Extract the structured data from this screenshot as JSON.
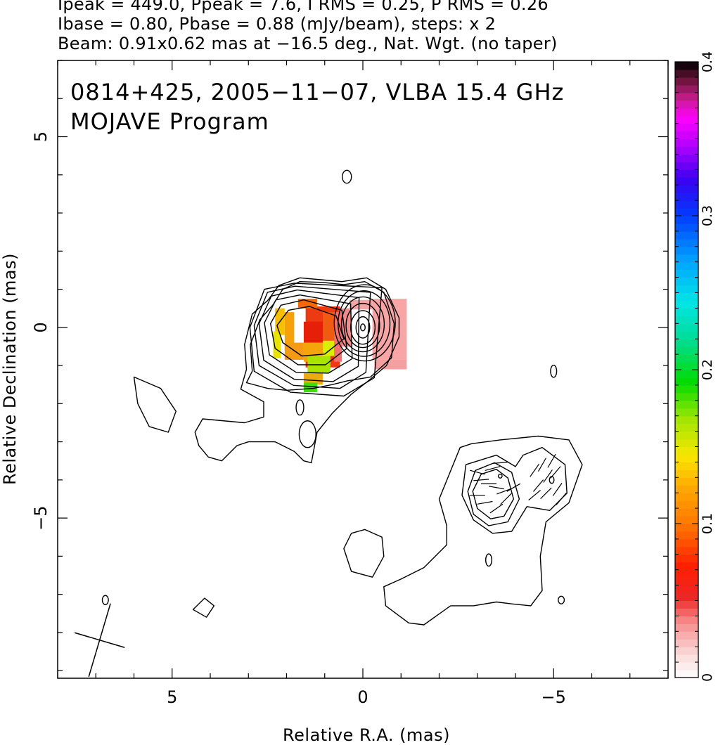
{
  "header": {
    "line1": "Ipeak = 449.0, Ppeak = 7.6, I RMS = 0.25, P RMS = 0.26",
    "line2": "Ibase = 0.80, Pbase = 0.88 (mJy/beam), steps: x 2",
    "line3": "Beam: 0.91x0.62 mas at −16.5 deg., Nat. Wgt. (no taper)"
  },
  "chart_data": {
    "type": "heatmap",
    "title": "0814+425, 2005−11−07, VLBA 15.4 GHz",
    "subtitle": "MOJAVE Program",
    "xlabel": "Relative R.A. (mas)",
    "ylabel": "Relative Declination (mas)",
    "xlim": [
      8.0,
      -8.0
    ],
    "ylim": [
      -9.2,
      7.0
    ],
    "x_ticks": [
      5,
      0,
      -5
    ],
    "x_tick_labels": [
      "5",
      "0",
      "−5"
    ],
    "y_ticks": [
      5,
      0,
      -5
    ],
    "y_tick_labels": [
      "5",
      "0",
      "−5"
    ],
    "colorbar": {
      "range": [
        0,
        0.4
      ],
      "ticks": [
        0,
        0.1,
        0.2,
        0.3,
        0.4
      ],
      "tick_labels": [
        "0",
        "0.1",
        "0.2",
        "0.3",
        "0.4"
      ]
    },
    "peak_intensity_mJy_per_beam": 449.0,
    "peak_polarization_mJy_per_beam": 7.6,
    "I_rms": 0.25,
    "P_rms": 0.26,
    "I_base": 0.8,
    "P_base": 0.88,
    "contour_step": 2,
    "beam": {
      "major_mas": 0.91,
      "minor_mas": 0.62,
      "pa_deg": -16.5
    },
    "core_contours": [
      {
        "x": 0.0,
        "y": 0.0,
        "rx": 0.06,
        "ry": 0.09
      },
      {
        "x": 0.0,
        "y": 0.0,
        "rx": 0.18,
        "ry": 0.28
      },
      {
        "x": 0.0,
        "y": 0.0,
        "rx": 0.32,
        "ry": 0.44
      },
      {
        "x": 0.0,
        "y": 0.05,
        "rx": 0.44,
        "ry": 0.58
      },
      {
        "x": 0.0,
        "y": 0.08,
        "rx": 0.56,
        "ry": 0.72
      },
      {
        "x": -0.03,
        "y": 0.1,
        "rx": 0.68,
        "ry": 0.86
      },
      {
        "x": -0.05,
        "y": 0.12,
        "rx": 0.8,
        "ry": 1.0
      }
    ],
    "nested_contours": [
      [
        [
          1.4,
          0.55
        ],
        [
          1.95,
          0.45
        ],
        [
          2.25,
          0.05
        ],
        [
          2.1,
          -0.4
        ],
        [
          1.6,
          -0.75
        ],
        [
          1.0,
          -0.7
        ],
        [
          0.5,
          -0.3
        ],
        [
          0.7,
          0.3
        ]
      ],
      [
        [
          1.55,
          0.72
        ],
        [
          2.15,
          0.58
        ],
        [
          2.42,
          0.1
        ],
        [
          2.3,
          -0.55
        ],
        [
          1.7,
          -0.98
        ],
        [
          0.98,
          -0.98
        ],
        [
          0.42,
          -0.55
        ],
        [
          0.55,
          0.45
        ]
      ],
      [
        [
          1.65,
          0.85
        ],
        [
          2.28,
          0.72
        ],
        [
          2.58,
          0.12
        ],
        [
          2.45,
          -0.72
        ],
        [
          1.75,
          -1.18
        ],
        [
          0.9,
          -1.2
        ],
        [
          0.28,
          -0.82
        ],
        [
          0.32,
          0.62
        ]
      ],
      [
        [
          1.72,
          0.98
        ],
        [
          2.4,
          0.82
        ],
        [
          2.72,
          0.1
        ],
        [
          2.6,
          -0.86
        ],
        [
          1.8,
          -1.36
        ],
        [
          0.78,
          -1.42
        ],
        [
          0.12,
          -1.02
        ],
        [
          0.1,
          0.78
        ]
      ],
      [
        [
          1.78,
          1.08
        ],
        [
          2.5,
          0.92
        ],
        [
          2.85,
          0.05
        ],
        [
          2.72,
          -1.0
        ],
        [
          1.82,
          -1.52
        ],
        [
          0.6,
          -1.6
        ],
        [
          -0.08,
          -1.18
        ],
        [
          -0.2,
          0.92
        ]
      ],
      [
        [
          1.8,
          1.16
        ],
        [
          2.58,
          1.0
        ],
        [
          2.96,
          0.0
        ],
        [
          2.85,
          -1.15
        ],
        [
          1.9,
          -1.7
        ],
        [
          0.5,
          -1.8
        ],
        [
          -0.3,
          -1.32
        ],
        [
          -0.5,
          1.04
        ]
      ]
    ],
    "outer_contours": [
      [
        [
          2.5,
          0.7
        ],
        [
          2.9,
          0.35
        ],
        [
          3.1,
          -0.45
        ],
        [
          3.05,
          -1.1
        ],
        [
          3.2,
          -1.62
        ],
        [
          2.6,
          -1.95
        ],
        [
          2.6,
          -2.35
        ],
        [
          3.1,
          -2.5
        ],
        [
          4.2,
          -2.4
        ],
        [
          4.4,
          -2.75
        ],
        [
          4.3,
          -3.1
        ],
        [
          4.05,
          -3.4
        ],
        [
          3.7,
          -3.5
        ],
        [
          3.3,
          -3.1
        ],
        [
          3.0,
          -3.0
        ],
        [
          2.3,
          -3.0
        ],
        [
          1.8,
          -3.25
        ],
        [
          1.55,
          -3.5
        ],
        [
          1.35,
          -3.55
        ],
        [
          1.2,
          -2.75
        ],
        [
          0.8,
          -2.25
        ],
        [
          0.55,
          -2.0
        ],
        [
          0.3,
          -1.75
        ],
        [
          -0.12,
          -1.42
        ],
        [
          -0.62,
          -1.0
        ],
        [
          -0.95,
          -0.25
        ],
        [
          -0.95,
          0.25
        ],
        [
          -0.6,
          1.0
        ],
        [
          -0.1,
          1.3
        ],
        [
          0.55,
          1.2
        ],
        [
          1.1,
          1.25
        ],
        [
          1.65,
          1.3
        ],
        [
          2.2,
          1.1
        ]
      ],
      [
        [
          2.35,
          0.6
        ],
        [
          2.7,
          0.2
        ],
        [
          2.95,
          -0.45
        ],
        [
          2.9,
          -1.15
        ],
        [
          3.05,
          -1.45
        ],
        [
          2.5,
          -1.6
        ],
        [
          2.0,
          -1.65
        ],
        [
          1.3,
          -1.6
        ],
        [
          0.8,
          -1.5
        ],
        [
          0.4,
          -1.4
        ],
        [
          -0.2,
          -1.3
        ],
        [
          -0.75,
          -0.8
        ],
        [
          -0.82,
          0.1
        ],
        [
          -0.55,
          0.92
        ],
        [
          -0.05,
          1.2
        ],
        [
          0.5,
          1.12
        ],
        [
          1.05,
          1.18
        ],
        [
          1.65,
          1.2
        ],
        [
          2.1,
          1.0
        ]
      ],
      [
        [
          -2.55,
          -3.15
        ],
        [
          -2.85,
          -3.05
        ],
        [
          -3.6,
          -2.95
        ],
        [
          -4.6,
          -2.85
        ],
        [
          -5.4,
          -2.95
        ],
        [
          -5.75,
          -3.6
        ],
        [
          -5.4,
          -4.6
        ],
        [
          -4.8,
          -5.1
        ],
        [
          -4.65,
          -6.0
        ],
        [
          -4.7,
          -6.9
        ],
        [
          -4.4,
          -7.3
        ],
        [
          -3.9,
          -7.25
        ],
        [
          -3.5,
          -7.2
        ],
        [
          -2.9,
          -7.3
        ],
        [
          -2.3,
          -7.3
        ],
        [
          -1.6,
          -7.8
        ],
        [
          -1.2,
          -7.75
        ],
        [
          -0.6,
          -7.3
        ],
        [
          -0.55,
          -6.8
        ],
        [
          -1.0,
          -6.6
        ],
        [
          -1.6,
          -6.3
        ],
        [
          -2.2,
          -5.7
        ],
        [
          -2.2,
          -5.2
        ],
        [
          -2.0,
          -4.5
        ]
      ],
      [
        [
          -2.7,
          -3.6
        ],
        [
          -3.5,
          -3.35
        ],
        [
          -4.0,
          -3.65
        ],
        [
          -4.2,
          -3.35
        ],
        [
          -4.7,
          -3.15
        ],
        [
          -5.3,
          -3.6
        ],
        [
          -5.35,
          -4.35
        ],
        [
          -4.9,
          -4.8
        ],
        [
          -4.3,
          -4.7
        ],
        [
          -3.9,
          -5.35
        ],
        [
          -3.4,
          -5.4
        ],
        [
          -2.9,
          -5.05
        ],
        [
          -2.6,
          -4.4
        ]
      ],
      [
        [
          -2.95,
          -3.75
        ],
        [
          -3.45,
          -3.55
        ],
        [
          -3.9,
          -3.8
        ],
        [
          -4.1,
          -4.5
        ],
        [
          -3.8,
          -5.1
        ],
        [
          -3.3,
          -5.2
        ],
        [
          -2.9,
          -4.9
        ],
        [
          -2.75,
          -4.3
        ]
      ],
      [
        [
          -3.1,
          -3.85
        ],
        [
          -3.5,
          -3.72
        ],
        [
          -3.8,
          -3.95
        ],
        [
          -3.95,
          -4.5
        ],
        [
          -3.7,
          -4.95
        ],
        [
          -3.35,
          -5.02
        ],
        [
          -3.0,
          -4.75
        ],
        [
          -2.88,
          -4.3
        ]
      ],
      [
        [
          6.0,
          -1.3
        ],
        [
          5.3,
          -1.6
        ],
        [
          4.9,
          -2.2
        ],
        [
          5.1,
          -2.75
        ],
        [
          5.6,
          -2.6
        ],
        [
          5.9,
          -2.0
        ]
      ],
      [
        [
          -0.05,
          -5.3
        ],
        [
          -0.5,
          -5.5
        ],
        [
          -0.55,
          -6.0
        ],
        [
          -0.25,
          -6.55
        ],
        [
          0.3,
          -6.4
        ],
        [
          0.5,
          -5.8
        ],
        [
          0.3,
          -5.4
        ]
      ],
      [
        [
          4.15,
          -7.1
        ],
        [
          3.9,
          -7.3
        ],
        [
          4.1,
          -7.6
        ],
        [
          4.45,
          -7.4
        ]
      ]
    ],
    "small_contours": [
      {
        "x": 0.42,
        "y": 3.95,
        "rx": 0.12,
        "ry": 0.17
      },
      {
        "x": -5.0,
        "y": -1.15,
        "rx": 0.08,
        "ry": 0.16
      },
      {
        "x": 1.65,
        "y": -2.1,
        "rx": 0.1,
        "ry": 0.2
      },
      {
        "x": 1.45,
        "y": -2.8,
        "rx": 0.22,
        "ry": 0.35
      },
      {
        "x": -3.6,
        "y": -3.9,
        "rx": 0.05,
        "ry": 0.05
      },
      {
        "x": -4.95,
        "y": -4.0,
        "rx": 0.06,
        "ry": 0.09
      },
      {
        "x": -3.3,
        "y": -6.1,
        "rx": 0.08,
        "ry": 0.16
      },
      {
        "x": -5.2,
        "y": -7.15,
        "rx": 0.08,
        "ry": 0.1
      },
      {
        "x": 6.75,
        "y": -7.15,
        "rx": 0.08,
        "ry": 0.12
      }
    ],
    "pol_pixels": [
      {
        "x": -0.25,
        "y": 0.75,
        "w": 0.9,
        "h": 1.6,
        "c": "#f7a5a5"
      },
      {
        "x": 0.35,
        "y": 0.72,
        "w": 0.6,
        "h": 0.25,
        "c": "#f7a5a5"
      },
      {
        "x": -0.3,
        "y": -0.85,
        "w": 0.85,
        "h": 0.25,
        "c": "#f4a0a0"
      },
      {
        "x": 0.6,
        "y": 0.5,
        "w": 0.3,
        "h": 1.0,
        "c": "#f28c8c"
      },
      {
        "x": 1.5,
        "y": 0.55,
        "w": 0.9,
        "h": 1.6,
        "c": "#ee3a12"
      },
      {
        "x": 1.7,
        "y": 0.75,
        "w": 0.5,
        "h": 0.25,
        "c": "#f06a0a"
      },
      {
        "x": 1.55,
        "y": 0.15,
        "w": 0.55,
        "h": 0.65,
        "c": "#e51f08"
      },
      {
        "x": 2.3,
        "y": 0.5,
        "w": 0.25,
        "h": 0.7,
        "c": "#f6c000"
      },
      {
        "x": 2.35,
        "y": -0.1,
        "w": 0.2,
        "h": 0.7,
        "c": "#e8e400"
      },
      {
        "x": 2.05,
        "y": 0.4,
        "w": 0.25,
        "h": 1.0,
        "c": "#f7a10a"
      },
      {
        "x": 2.05,
        "y": -0.4,
        "w": 0.5,
        "h": 0.45,
        "c": "#f59a14"
      },
      {
        "x": 1.55,
        "y": -0.4,
        "w": 0.5,
        "h": 0.5,
        "c": "#f5a50c"
      },
      {
        "x": 1.05,
        "y": 0.4,
        "w": 0.35,
        "h": 0.8,
        "c": "#ef5b10"
      },
      {
        "x": 1.05,
        "y": -0.35,
        "w": 0.3,
        "h": 0.4,
        "c": "#d8f000"
      },
      {
        "x": 1.45,
        "y": -0.75,
        "w": 0.6,
        "h": 0.45,
        "c": "#a8e400"
      },
      {
        "x": 1.55,
        "y": -1.2,
        "w": 0.5,
        "h": 0.3,
        "c": "#ecab10"
      },
      {
        "x": 1.55,
        "y": -1.45,
        "w": 0.35,
        "h": 0.25,
        "c": "#40dc0c"
      },
      {
        "x": 0.75,
        "y": 0.4,
        "w": 0.2,
        "h": 1.3,
        "c": "#f17070"
      }
    ],
    "vectors": [
      {
        "x": -3.1,
        "y": -4.0,
        "a": 5
      },
      {
        "x": -3.3,
        "y": -4.1,
        "a": 0
      },
      {
        "x": -3.5,
        "y": -4.2,
        "a": -10
      },
      {
        "x": -3.7,
        "y": -4.3,
        "a": 20
      },
      {
        "x": -3.4,
        "y": -3.7,
        "a": 15
      },
      {
        "x": -3.0,
        "y": -4.4,
        "a": 0
      },
      {
        "x": -3.2,
        "y": -4.6,
        "a": 10
      },
      {
        "x": -3.5,
        "y": -4.75,
        "a": 35
      },
      {
        "x": -3.75,
        "y": -4.5,
        "a": 45
      },
      {
        "x": -3.95,
        "y": -4.2,
        "a": 30
      },
      {
        "x": -3.0,
        "y": -3.8,
        "a": -15
      },
      {
        "x": -3.6,
        "y": -3.55,
        "a": 5
      },
      {
        "x": -4.5,
        "y": -3.75,
        "a": 55
      },
      {
        "x": -4.7,
        "y": -3.6,
        "a": 60
      },
      {
        "x": -4.85,
        "y": -3.9,
        "a": 55
      },
      {
        "x": -5.05,
        "y": -3.8,
        "a": 50
      },
      {
        "x": -4.6,
        "y": -4.15,
        "a": 50
      },
      {
        "x": -4.8,
        "y": -4.35,
        "a": 45
      },
      {
        "x": -5.1,
        "y": -4.25,
        "a": 55
      },
      {
        "x": -4.95,
        "y": -3.5,
        "a": 60
      },
      {
        "x": -4.5,
        "y": -4.4,
        "a": 40
      },
      {
        "x": -5.2,
        "y": -4.5,
        "a": 50
      }
    ],
    "beam_marker": {
      "x": 6.9,
      "y": -8.2
    }
  }
}
